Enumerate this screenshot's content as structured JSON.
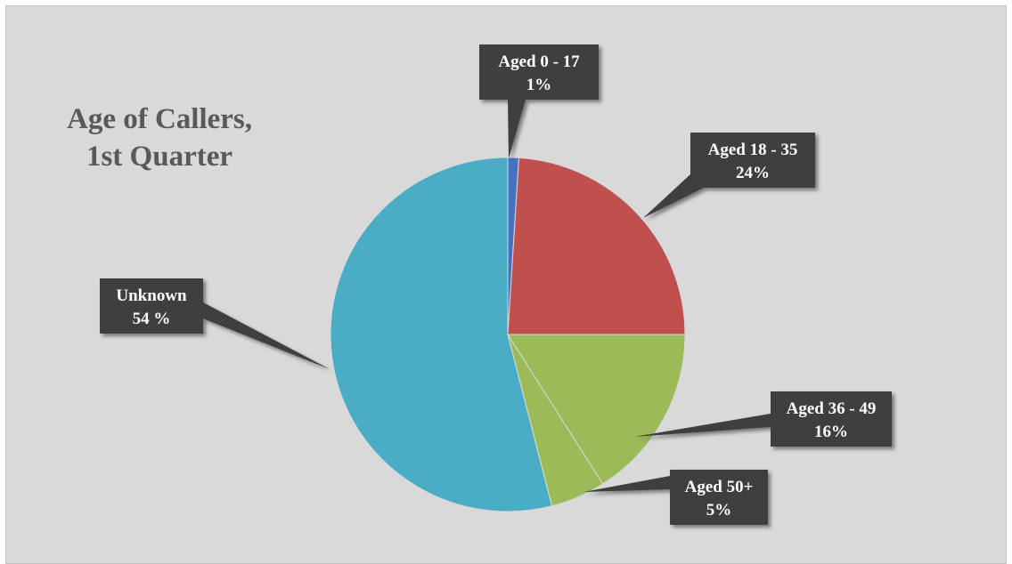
{
  "chart_data": {
    "type": "pie",
    "title": [
      "Age of Callers,",
      "1st Quarter"
    ],
    "slices": [
      {
        "name": "Aged 0 - 17",
        "value": 1,
        "label_pct": "1%",
        "color": "#4472c4"
      },
      {
        "name": "Aged 18 - 35",
        "value": 24,
        "label_pct": "24%",
        "color": "#c0504d"
      },
      {
        "name": "Aged 36 - 49",
        "value": 16,
        "label_pct": "16%",
        "color": "#9bbb59"
      },
      {
        "name": "Aged 50+",
        "value": 5,
        "label_pct": "5%",
        "color": "#9bbb59"
      },
      {
        "name": "Unknown",
        "value": 54,
        "label_pct": "54 %",
        "color": "#4bacc6"
      }
    ],
    "start_angle_deg": 0,
    "direction": "clockwise",
    "background_color": "#d9d9d9",
    "label_box_color": "#3a3a3a",
    "legend": "none"
  }
}
